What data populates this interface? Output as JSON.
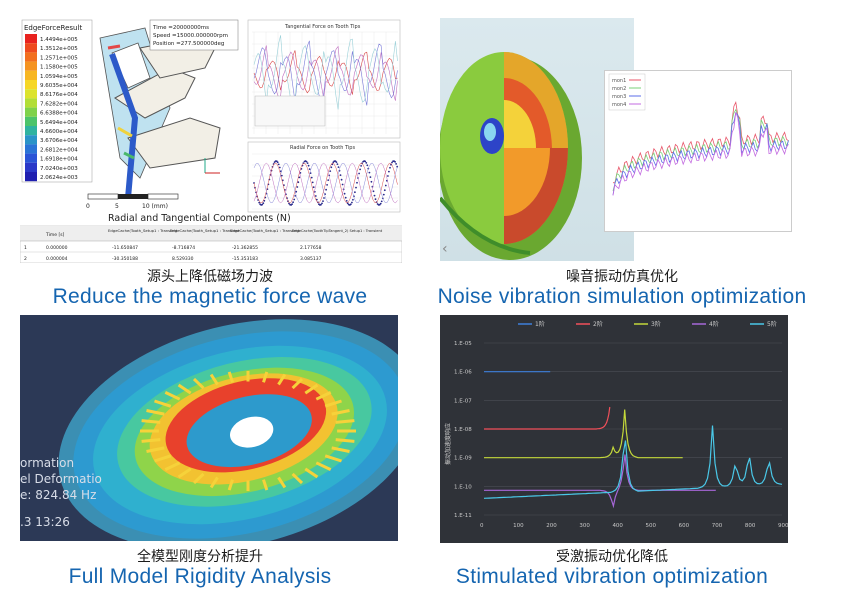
{
  "captions": {
    "p1_cn": "源头上降低磁场力波",
    "p1_en": "Reduce the magnetic force wave",
    "p2_cn": "噪音振动仿真优化",
    "p2_en": "Noise vibration simulation optimization",
    "p3_cn": "全模型刚度分析提升",
    "p3_en": "Full Model Rigidity Analysis",
    "p4_cn": "受激振动优化降低",
    "p4_en": "Stimulated vibration optimization"
  },
  "p1": {
    "legend_title": "EdgeForceResult",
    "legend_values": [
      "1.4494e+005",
      "1.3512e+005",
      "1.2571e+005",
      "1.1580e+005",
      "1.0594e+005",
      "9.6035e+004",
      "8.6176e+004",
      "7.6282e+004",
      "6.6388e+004",
      "5.6494e+004",
      "4.6600e+004",
      "3.6706e+004",
      "2.6812e+004",
      "1.6918e+004",
      "7.0240e+003",
      "2.0624e+003"
    ],
    "info_lines": [
      "Time =20000000ms",
      "Speed =15000.000000rpm",
      "Position =277.500000deg"
    ],
    "scale_ticks": [
      "0",
      "5",
      "10 (mm)"
    ],
    "chart_title": "Radial and Tangential Components (N)",
    "small_plot_top_title": "Tangential Force on Tooth Tips",
    "small_plot_bottom_title": "Radial Force on Tooth Tips",
    "table_headers": [
      "Time [s]",
      "EdgeCache(Tooth_Setup1 : Transient",
      "EdgeCache(Tooth_Setup1 : Transient",
      "EdgeCache(Tooth_Setup1 : Transient",
      "EdgeCache(ToothTipTangent_2) Setup1 : Transient"
    ],
    "table_rows": [
      [
        "1",
        "0.000000",
        "-11.650847",
        "-8.716874",
        "-21.362855",
        "2.177658"
      ],
      [
        "2",
        "0.000004",
        "-30.350188",
        "8.529330",
        "-15.353183",
        "3.085137"
      ]
    ]
  },
  "p2": {
    "legend": [
      "mon1",
      "mon2",
      "mon3",
      "mon4"
    ],
    "colors": [
      "#e8566a",
      "#79d27a",
      "#5b6ee8",
      "#c36be0"
    ]
  },
  "p3": {
    "overlay_lines": [
      "ormation",
      "el Deformatio",
      "e: 824.84 Hz",
      ".3  13:26"
    ]
  },
  "p4": {
    "chart_data": {
      "type": "line",
      "x": [
        0,
        100,
        200,
        300,
        400,
        500,
        600,
        700,
        800,
        900
      ],
      "xlim": [
        0,
        900
      ],
      "y_ticks": [
        "1.E-05",
        "1.E-06",
        "1.E-07",
        "1.E-08",
        "1.E-09",
        "1.E-10",
        "1.E-11"
      ],
      "ylabel": "振动加速度响应",
      "series": [
        {
          "name": "1阶",
          "color": "#3e7fdb",
          "range": [
            0,
            200
          ],
          "level": "1.E-06"
        },
        {
          "name": "2阶",
          "color": "#f2505a",
          "range": [
            0,
            380
          ],
          "level": "1.E-08"
        },
        {
          "name": "3阶",
          "color": "#c4d83a",
          "range": [
            0,
            600
          ],
          "level": "1.E-09"
        },
        {
          "name": "4阶",
          "color": "#a767d8",
          "range": [
            0,
            700
          ],
          "level": "1.E-10"
        },
        {
          "name": "5阶",
          "color": "#4ac8e8",
          "range": [
            0,
            900
          ],
          "level": "1.E-10"
        }
      ],
      "grid": true,
      "legend": "top"
    }
  }
}
